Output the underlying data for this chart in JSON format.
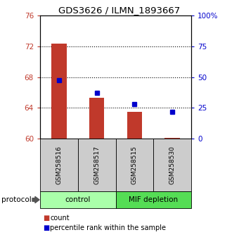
{
  "title": "GDS3626 / ILMN_1893667",
  "samples": [
    "GSM258516",
    "GSM258517",
    "GSM258515",
    "GSM258530"
  ],
  "groups": [
    "control",
    "control",
    "MIF depletion",
    "MIF depletion"
  ],
  "count_values": [
    72.3,
    65.3,
    63.5,
    60.05
  ],
  "percentile_values": [
    47.5,
    37.0,
    28.0,
    22.0
  ],
  "ylim_left": [
    60,
    76
  ],
  "ylim_right": [
    0,
    100
  ],
  "yticks_left": [
    60,
    64,
    68,
    72,
    76
  ],
  "yticks_right": [
    0,
    25,
    50,
    75,
    100
  ],
  "ytick_labels_right": [
    "0",
    "25",
    "50",
    "75",
    "100%"
  ],
  "bar_color": "#c0392b",
  "dot_color": "#0000cc",
  "group_colors": {
    "control": "#aaffaa",
    "MIF depletion": "#55dd55"
  },
  "protocol_label": "protocol",
  "legend_count": "count",
  "legend_percentile": "percentile rank within the sample",
  "background_color": "#ffffff",
  "grid_ticks": [
    64,
    68,
    72
  ]
}
